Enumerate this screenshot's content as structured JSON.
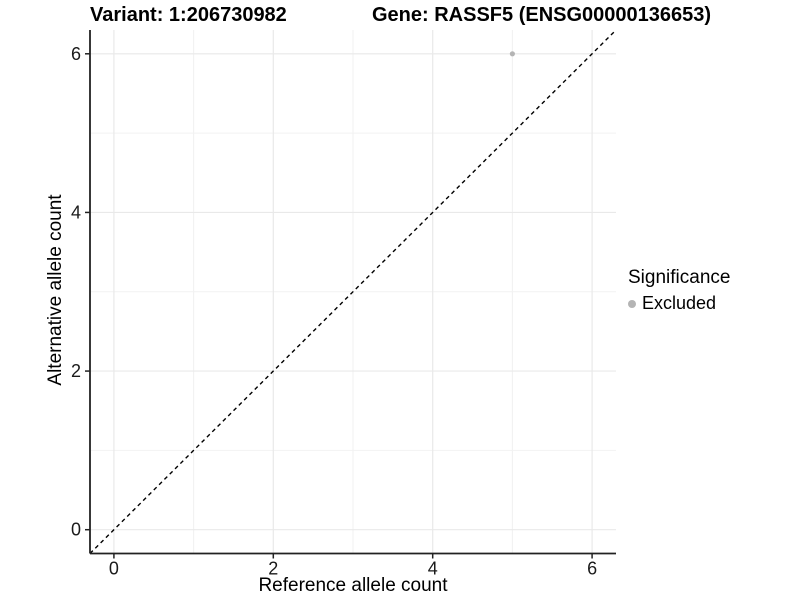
{
  "titles": {
    "variant": "Variant: 1:206730982",
    "gene": "Gene: RASSF5 (ENSG00000136653)"
  },
  "chart_data": {
    "type": "scatter",
    "title_left": "Variant: 1:206730982",
    "title_right": "Gene: RASSF5 (ENSG00000136653)",
    "xlabel": "Reference allele count",
    "ylabel": "Alternative allele count",
    "xlim": [
      -0.3,
      6.3
    ],
    "ylim": [
      -0.3,
      6.3
    ],
    "x_ticks": [
      0,
      2,
      4,
      6
    ],
    "y_ticks": [
      0,
      2,
      4,
      6
    ],
    "x_minor_ticks": [
      1,
      3,
      5
    ],
    "y_minor_ticks": [
      1,
      3,
      5
    ],
    "grid": "major+minor",
    "reference_line": {
      "kind": "identity",
      "equation": "y = x",
      "style": "dashed",
      "color": "#000000"
    },
    "series": [
      {
        "name": "Excluded",
        "color": "#b4b4b4",
        "points": [
          [
            5,
            6
          ]
        ]
      }
    ],
    "legend": {
      "title": "Significance",
      "position": "right",
      "items": [
        {
          "label": "Excluded",
          "color": "#b4b4b4",
          "marker": "circle"
        }
      ]
    }
  },
  "colors": {
    "background": "#ffffff",
    "grid_major": "#e9e9e9",
    "grid_minor": "#f2f2f2",
    "axis": "#222222",
    "tick_text": "#1a1a1a",
    "point": "#b4b4b4",
    "text": "#000000"
  }
}
